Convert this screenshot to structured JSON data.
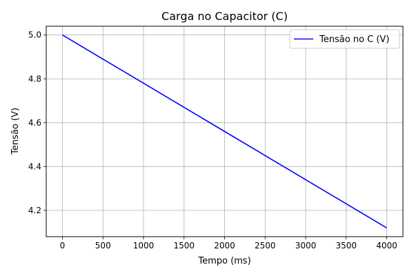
{
  "chart_data": {
    "type": "line",
    "title": "Carga no Capacitor (C)",
    "xlabel": "Tempo (ms)",
    "ylabel": "Tensão (V)",
    "xlim": [
      -200,
      4200
    ],
    "ylim": [
      4.08,
      5.04
    ],
    "x_ticks": [
      0,
      500,
      1000,
      1500,
      2000,
      2500,
      3000,
      3500,
      4000
    ],
    "y_ticks": [
      4.2,
      4.4,
      4.6,
      4.8,
      5.0
    ],
    "x_tick_labels": [
      "0",
      "500",
      "1000",
      "1500",
      "2000",
      "2500",
      "3000",
      "3500",
      "4000"
    ],
    "y_tick_labels": [
      "4.2",
      "4.4",
      "4.6",
      "4.8",
      "5.0"
    ],
    "grid": true,
    "legend_position": "top-right",
    "series": [
      {
        "name": "Tensão no C (V)",
        "color": "#0000ff",
        "x": [
          0,
          500,
          1000,
          1500,
          2000,
          2500,
          3000,
          3500,
          4000
        ],
        "y": [
          5.0,
          4.89,
          4.78,
          4.67,
          4.56,
          4.45,
          4.34,
          4.23,
          4.12
        ]
      }
    ]
  }
}
